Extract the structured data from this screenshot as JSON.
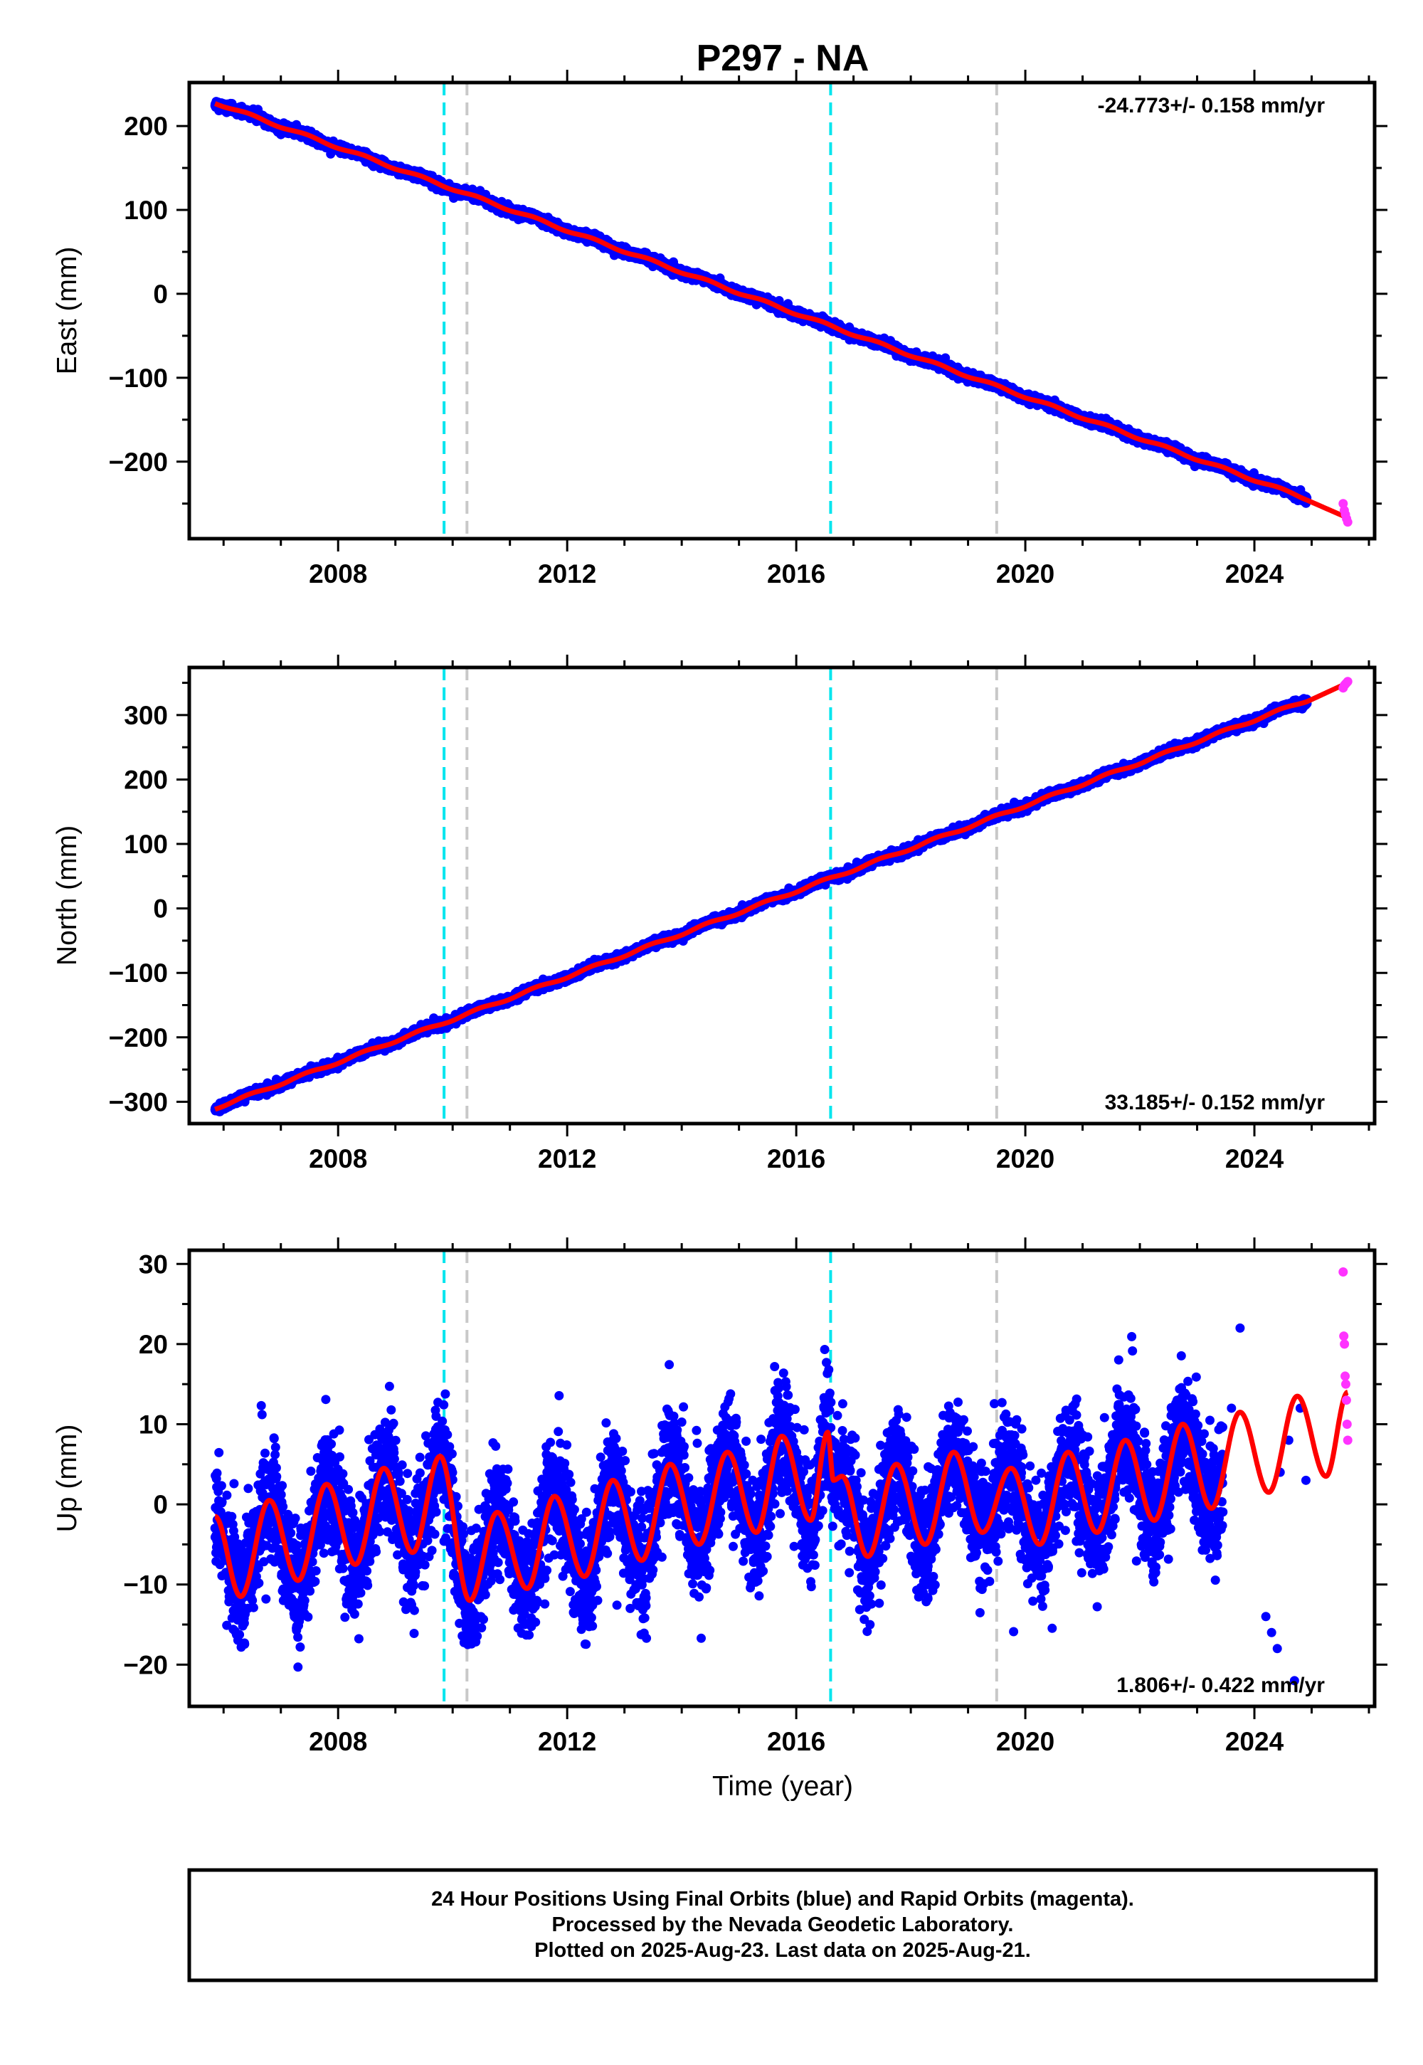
{
  "title": "P297 - NA",
  "colors": {
    "final_points": "#0000ff",
    "rapid_points": "#ff33ff",
    "model_fit": "#ff0000",
    "antenna_change": "#00e5ee",
    "earthquake": "#c8c8c8"
  },
  "footer": {
    "lines": [
      "24 Hour Positions Using Final Orbits (blue) and Rapid Orbits (magenta).",
      "Processed by the Nevada Geodetic Laboratory.",
      "Plotted on 2025-Aug-23. Last data on 2025-Aug-21."
    ]
  },
  "chart_data": [
    {
      "type": "scatter",
      "component": "east",
      "ylabel": "East (mm)",
      "xlim": [
        2005.5,
        2026.0
      ],
      "ylim": [
        -285,
        245
      ],
      "xticks": [
        2008,
        2012,
        2016,
        2020,
        2024
      ],
      "yticks": [
        -200,
        -100,
        0,
        100,
        200
      ],
      "rate_label": "-24.773+/- 0.158 mm/yr",
      "rate_position": "top-right",
      "vertical_lines": [
        {
          "x": 2009.85,
          "kind": "antenna_change"
        },
        {
          "x": 2010.25,
          "kind": "earthquake"
        },
        {
          "x": 2016.6,
          "kind": "antenna_change"
        },
        {
          "x": 2019.5,
          "kind": "earthquake"
        }
      ],
      "data_span": [
        2005.85,
        2024.92
      ],
      "rapid_span": [
        2025.55,
        2025.63
      ],
      "trend": {
        "x0": 2005.85,
        "y0": 228,
        "slope": -24.773
      },
      "seasonal_amplitude": 1.5,
      "scatter_sd": 2.5,
      "rapid_points": [
        -250,
        -258,
        -263,
        -268,
        -272
      ],
      "fit_end": -267
    },
    {
      "type": "scatter",
      "component": "north",
      "ylabel": "North (mm)",
      "xlim": [
        2005.5,
        2026.0
      ],
      "ylim": [
        -325,
        365
      ],
      "xticks": [
        2008,
        2012,
        2016,
        2020,
        2024
      ],
      "yticks": [
        -300,
        -200,
        -100,
        0,
        100,
        200,
        300
      ],
      "rate_label": "33.185+/- 0.152 mm/yr",
      "rate_position": "bottom-right",
      "vertical_lines": [
        {
          "x": 2009.85,
          "kind": "antenna_change"
        },
        {
          "x": 2010.25,
          "kind": "earthquake"
        },
        {
          "x": 2016.6,
          "kind": "antenna_change"
        },
        {
          "x": 2019.5,
          "kind": "earthquake"
        }
      ],
      "data_span": [
        2005.85,
        2024.92
      ],
      "rapid_span": [
        2025.55,
        2025.63
      ],
      "trend": {
        "x0": 2005.85,
        "y0": -310,
        "slope": 33.185
      },
      "seasonal_amplitude": 2,
      "scatter_sd": 3,
      "rapid_points": [
        342,
        346,
        348,
        350,
        352
      ],
      "fit_end": 350
    },
    {
      "type": "scatter",
      "component": "up",
      "ylabel": "Up (mm)",
      "xlabel": "Time (year)",
      "xlim": [
        2005.5,
        2026.0
      ],
      "ylim": [
        -24.5,
        31
      ],
      "xticks": [
        2008,
        2012,
        2016,
        2020,
        2024
      ],
      "yticks": [
        -20,
        -10,
        0,
        10,
        20,
        30
      ],
      "rate_label": "1.806+/- 0.422 mm/yr",
      "rate_position": "bottom-right",
      "vertical_lines": [
        {
          "x": 2009.85,
          "kind": "antenna_change"
        },
        {
          "x": 2010.25,
          "kind": "earthquake"
        },
        {
          "x": 2016.6,
          "kind": "antenna_change"
        },
        {
          "x": 2019.5,
          "kind": "earthquake"
        }
      ],
      "data_span": [
        2005.85,
        2023.45
      ],
      "sparse_points": [
        [
          2023.6,
          12
        ],
        [
          2023.75,
          22
        ],
        [
          2024.2,
          -14
        ],
        [
          2024.3,
          -16
        ],
        [
          2024.4,
          -18
        ],
        [
          2024.45,
          4
        ],
        [
          2024.6,
          8
        ],
        [
          2024.7,
          -22
        ],
        [
          2024.8,
          12
        ],
        [
          2024.9,
          3
        ]
      ],
      "rapid_span": [
        2025.55,
        2025.63
      ],
      "rapid_points": [
        29,
        21,
        20,
        16,
        15,
        13,
        10,
        8
      ],
      "seasonal_fit": {
        "peaks": [
          {
            "x": 2005.85,
            "y": -1.5
          },
          {
            "x": 2006.3,
            "y": -11.5
          },
          {
            "x": 2006.8,
            "y": 0.5
          },
          {
            "x": 2007.3,
            "y": -9.5
          },
          {
            "x": 2007.8,
            "y": 2.5
          },
          {
            "x": 2008.3,
            "y": -7.5
          },
          {
            "x": 2008.8,
            "y": 4.5
          },
          {
            "x": 2009.3,
            "y": -6
          },
          {
            "x": 2009.78,
            "y": 6
          },
          {
            "x": 2010.3,
            "y": -12
          },
          {
            "x": 2010.78,
            "y": -1
          },
          {
            "x": 2011.3,
            "y": -10.5
          },
          {
            "x": 2011.78,
            "y": 1
          },
          {
            "x": 2012.3,
            "y": -9
          },
          {
            "x": 2012.8,
            "y": 3
          },
          {
            "x": 2013.3,
            "y": -7
          },
          {
            "x": 2013.8,
            "y": 5
          },
          {
            "x": 2014.3,
            "y": -5
          },
          {
            "x": 2014.8,
            "y": 6.5
          },
          {
            "x": 2015.3,
            "y": -3.5
          },
          {
            "x": 2015.75,
            "y": 8.5
          },
          {
            "x": 2016.25,
            "y": -2
          },
          {
            "x": 2016.55,
            "y": 9
          },
          {
            "x": 2016.65,
            "y": 3
          },
          {
            "x": 2016.8,
            "y": 3.5
          },
          {
            "x": 2017.25,
            "y": -6.5
          },
          {
            "x": 2017.75,
            "y": 5
          },
          {
            "x": 2018.25,
            "y": -5
          },
          {
            "x": 2018.75,
            "y": 6.5
          },
          {
            "x": 2019.25,
            "y": -3.5
          },
          {
            "x": 2019.75,
            "y": 4.5
          },
          {
            "x": 2020.25,
            "y": -5
          },
          {
            "x": 2020.75,
            "y": 6.5
          },
          {
            "x": 2021.25,
            "y": -3.5
          },
          {
            "x": 2021.75,
            "y": 8
          },
          {
            "x": 2022.25,
            "y": -2
          },
          {
            "x": 2022.75,
            "y": 10
          },
          {
            "x": 2023.25,
            "y": -0.5
          },
          {
            "x": 2023.75,
            "y": 11.5
          },
          {
            "x": 2024.25,
            "y": 1.5
          },
          {
            "x": 2024.75,
            "y": 13.5
          },
          {
            "x": 2025.25,
            "y": 3.5
          },
          {
            "x": 2025.63,
            "y": 14
          }
        ]
      },
      "scatter_sd": 3.5
    }
  ]
}
